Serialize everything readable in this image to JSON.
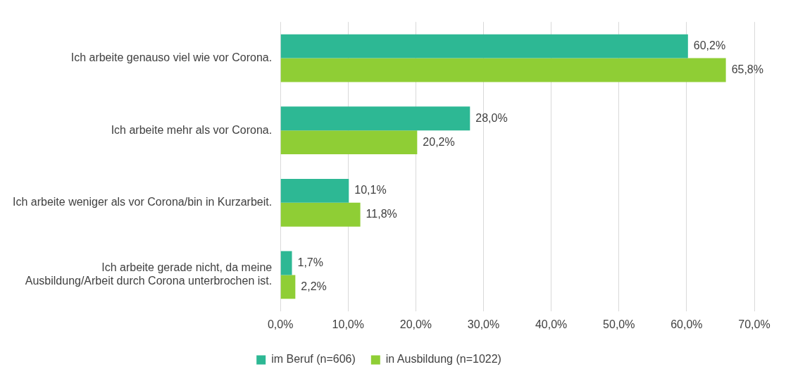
{
  "chart_data": {
    "type": "bar",
    "orientation": "horizontal",
    "categories": [
      "Ich arbeite genauso viel wie vor Corona.",
      "Ich arbeite mehr als vor Corona.",
      "Ich arbeite weniger als vor Corona/bin in Kurzarbeit.",
      "Ich arbeite gerade nicht, da meine\nAusbildung/Arbeit durch Corona unterbrochen ist."
    ],
    "series": [
      {
        "name": "im Beruf (n=606)",
        "color": "#2db894",
        "values": [
          60.2,
          28.0,
          10.1,
          1.7
        ],
        "value_labels": [
          "60,2%",
          "28,0%",
          "10,1%",
          "1,7%"
        ]
      },
      {
        "name": "in Ausbildung (n=1022)",
        "color": "#8fce35",
        "values": [
          65.8,
          20.2,
          11.8,
          2.2
        ],
        "value_labels": [
          "65,8%",
          "20,2%",
          "11,8%",
          "2,2%"
        ]
      }
    ],
    "xlim": [
      0,
      70
    ],
    "xticks": [
      {
        "value": 0,
        "label": "0,0%"
      },
      {
        "value": 10,
        "label": "10,0%"
      },
      {
        "value": 20,
        "label": "20,0%"
      },
      {
        "value": 30,
        "label": "30,0%"
      },
      {
        "value": 40,
        "label": "40,0%"
      },
      {
        "value": 50,
        "label": "50,0%"
      },
      {
        "value": 60,
        "label": "60,0%"
      },
      {
        "value": 70,
        "label": "70,0%"
      }
    ],
    "grid": "x",
    "legend": "bottom"
  }
}
